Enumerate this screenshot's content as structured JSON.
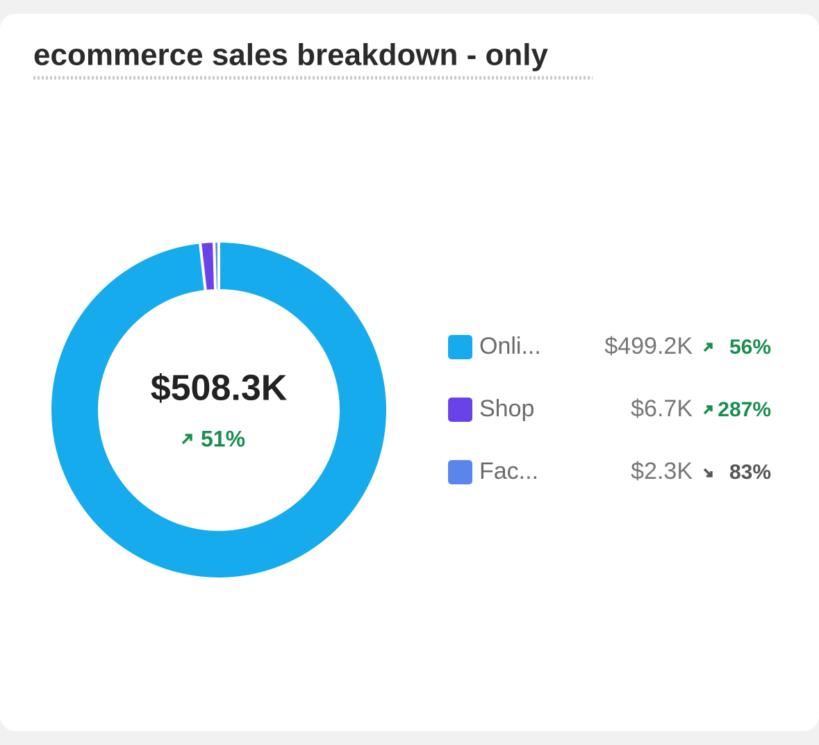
{
  "chart_data": {
    "type": "donut",
    "title": "ecommerce sales breakdown - only",
    "total": 508.3,
    "total_label": "$508.3K",
    "total_change": 51,
    "total_change_label": "51%",
    "total_change_direction": "up",
    "categories": [
      "Onli...",
      "Shop",
      "Fac..."
    ],
    "values": [
      499.2,
      6.7,
      2.3
    ],
    "value_labels": [
      "$499.2K",
      "$6.7K",
      "$2.3K"
    ],
    "colors": [
      "#16abec",
      "#6a43e8",
      "#5a86ec"
    ],
    "changes": [
      56,
      287,
      83
    ],
    "change_labels": [
      "56%",
      "287%",
      "83%"
    ],
    "change_directions": [
      "up",
      "up",
      "down"
    ],
    "up_color": "#1b8e4f",
    "down_color": "#555555"
  }
}
